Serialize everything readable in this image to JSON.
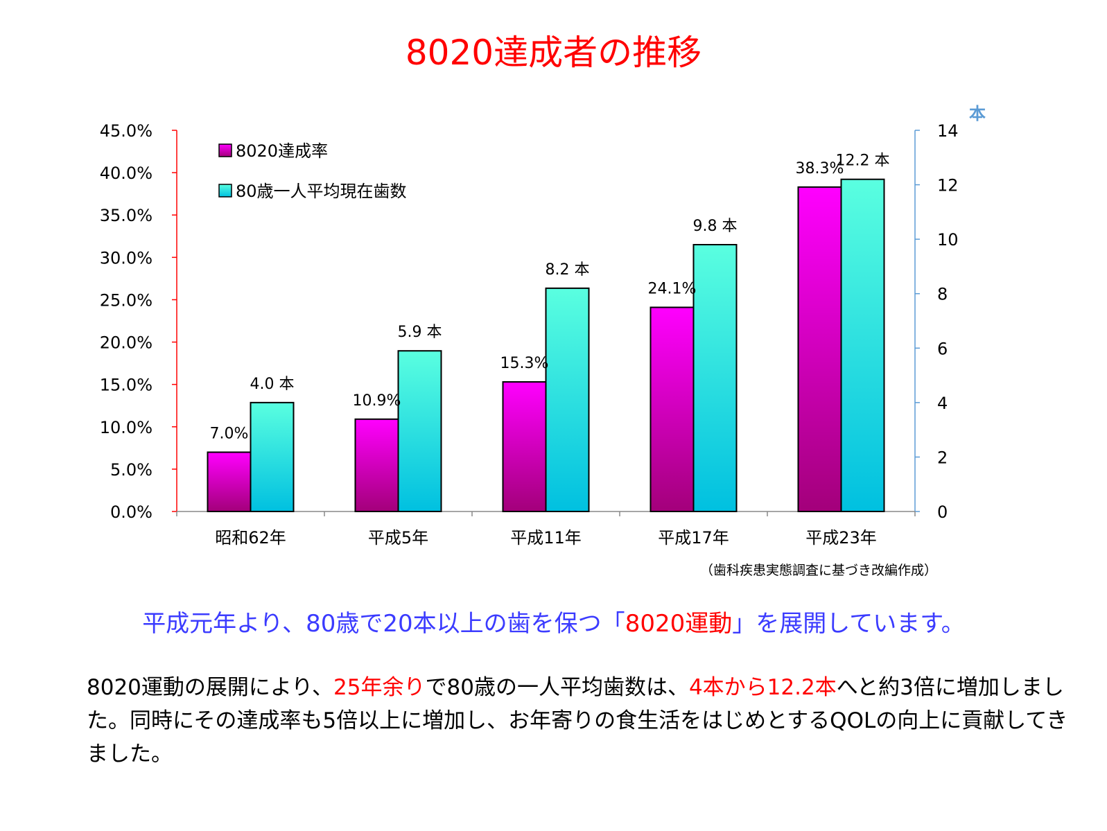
{
  "title": "8020達成者の推移",
  "chart_data": {
    "type": "bar",
    "categories": [
      "昭和62年",
      "平成5年",
      "平成11年",
      "平成17年",
      "平成23年"
    ],
    "series": [
      {
        "name": "8020達成率",
        "axis": "left",
        "values": [
          7.0,
          10.9,
          15.3,
          24.1,
          38.3
        ],
        "labels": [
          "7.0%",
          "10.9%",
          "15.3%",
          "24.1%",
          "38.3%"
        ],
        "color_top": "#ff00ff",
        "color_bottom": "#a3007a"
      },
      {
        "name": "80歳一人平均現在歯数",
        "axis": "right",
        "values": [
          4.0,
          5.9,
          8.2,
          9.8,
          12.2
        ],
        "labels": [
          "4.0 本",
          "5.9 本",
          "8.2 本",
          "9.8 本",
          "12.2 本"
        ],
        "color_top": "#5affe0",
        "color_bottom": "#00c0e0"
      }
    ],
    "y_left": {
      "min": 0,
      "max": 45,
      "ticks": [
        "0.0%",
        "5.0%",
        "10.0%",
        "15.0%",
        "20.0%",
        "25.0%",
        "30.0%",
        "35.0%",
        "40.0%",
        "45.0%"
      ],
      "color": "#ff0000"
    },
    "y_right": {
      "min": 0,
      "max": 14,
      "ticks": [
        "0",
        "2",
        "4",
        "6",
        "8",
        "10",
        "12",
        "14"
      ],
      "unit_label": "本",
      "color": "#5b9bd5"
    },
    "legend_position": "top-left"
  },
  "source": "（歯科疾患実態調査に基づき改編作成）",
  "tagline": {
    "part1": "平成元年より、80歳で20本以上の歯を保つ「",
    "highlight": "8020運動",
    "part2": "」を展開しています。"
  },
  "body": {
    "s1": "8020運動の展開により、",
    "r1": "25年余り",
    "s2": "で80歳の一人平均歯数は、",
    "r2": "4本から12.2本",
    "s3": "へと約3倍に増加しました。同時にその達成率も5倍以上に増加し、お年寄りの食生活をはじめとするQOLの向上に貢献してきました。"
  }
}
